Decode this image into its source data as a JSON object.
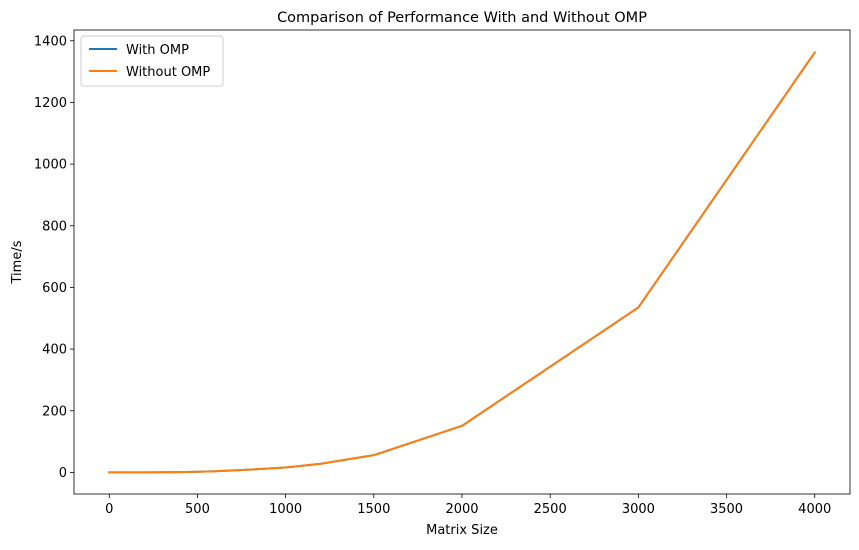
{
  "chart_data": {
    "type": "line",
    "title": "Comparison of Performance With and Without OMP",
    "xlabel": "Matrix Size",
    "ylabel": "Time/s",
    "xlim": [
      -200,
      4200
    ],
    "ylim": [
      -70,
      1435
    ],
    "xticks": [
      0,
      500,
      1000,
      1500,
      2000,
      2500,
      3000,
      3500,
      4000
    ],
    "yticks": [
      0,
      200,
      400,
      600,
      800,
      1000,
      1200,
      1400
    ],
    "grid": false,
    "legend_position": "top-left",
    "x": [
      0,
      100,
      200,
      300,
      400,
      500,
      600,
      800,
      1000,
      1200,
      1500,
      2000,
      3000,
      4000
    ],
    "series": [
      {
        "name": "With OMP",
        "color": "#1f77b4",
        "values": [
          0,
          0.1,
          0.2,
          0.5,
          1,
          2,
          4,
          9,
          16,
          28,
          56,
          151,
          535,
          1362
        ]
      },
      {
        "name": "Without OMP",
        "color": "#ff7f0e",
        "values": [
          0,
          0.1,
          0.2,
          0.5,
          1,
          2,
          4,
          9,
          16,
          28,
          56,
          151,
          535,
          1362
        ]
      }
    ]
  }
}
